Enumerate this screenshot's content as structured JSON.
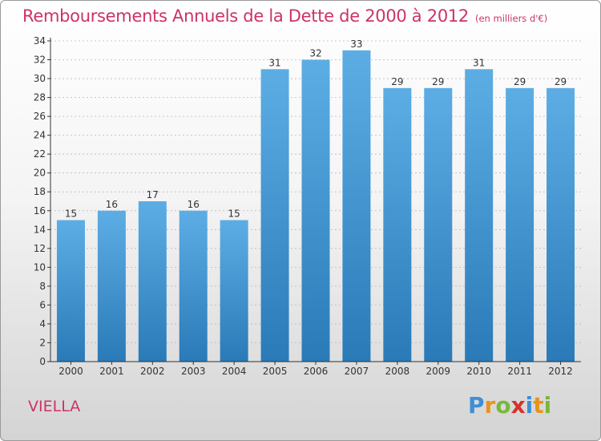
{
  "header": {
    "title": "Remboursements Annuels de la Dette de 2000 à 2012",
    "unit": "(en milliers d'€)"
  },
  "footer": {
    "place": "VIELLA",
    "logo_letters": [
      {
        "char": "P",
        "color": "#3d8fd6"
      },
      {
        "char": "r",
        "color": "#e8941a"
      },
      {
        "char": "o",
        "color": "#79b83a"
      },
      {
        "char": "x",
        "color": "#d7312b"
      },
      {
        "char": "i",
        "color": "#3d8fd6"
      },
      {
        "char": "t",
        "color": "#e8941a"
      },
      {
        "char": "i",
        "color": "#79b83a"
      }
    ]
  },
  "colors": {
    "title": "#cc3366",
    "bar_top": "#5dade5",
    "bar_bottom": "#2a7ab8",
    "axis": "#333333",
    "grid": "#b8b8b8"
  },
  "chart_data": {
    "type": "bar",
    "title": "Remboursements Annuels de la Dette de 2000 à 2012",
    "subtitle": "(en milliers d'€)",
    "categories": [
      "2000",
      "2001",
      "2002",
      "2003",
      "2004",
      "2005",
      "2006",
      "2007",
      "2008",
      "2009",
      "2010",
      "2011",
      "2012"
    ],
    "values": [
      15,
      16,
      17,
      16,
      15,
      31,
      32,
      33,
      29,
      29,
      31,
      29,
      29
    ],
    "ylim": [
      0,
      34
    ],
    "yticks": [
      0,
      2,
      4,
      6,
      8,
      10,
      12,
      14,
      16,
      18,
      20,
      22,
      24,
      26,
      28,
      30,
      32,
      34
    ],
    "grid": "horizontal",
    "data_labels": true
  }
}
